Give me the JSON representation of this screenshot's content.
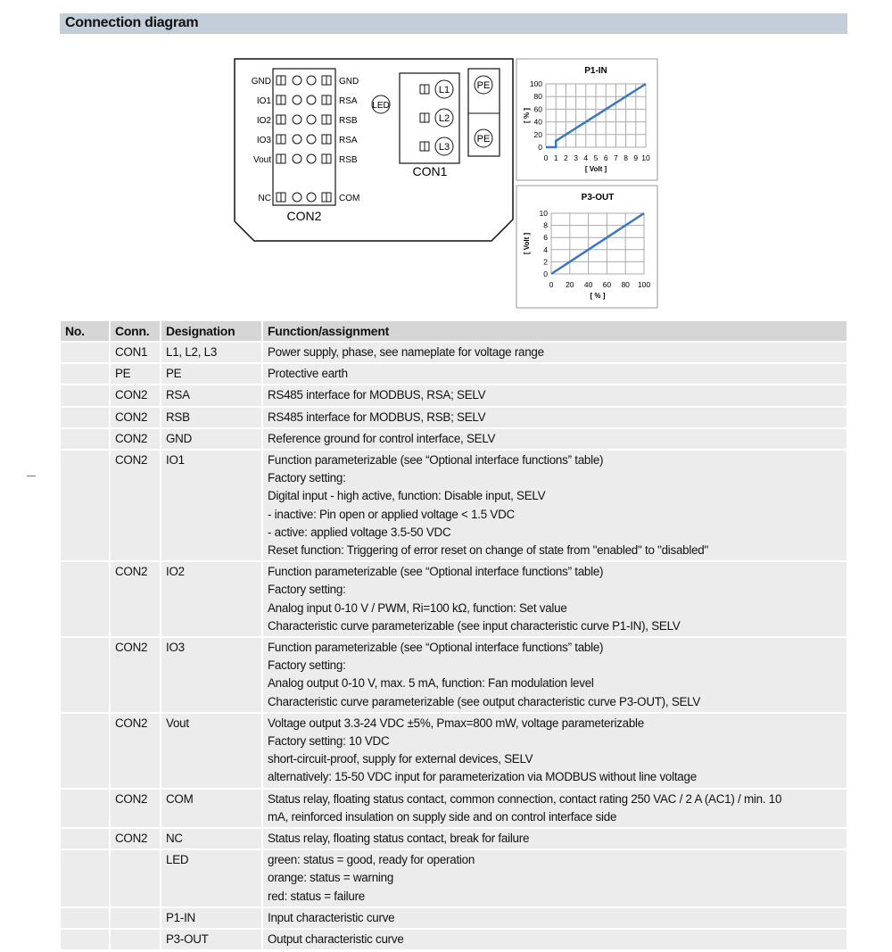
{
  "section_title": "Connection diagram",
  "diagram": {
    "con2_left_labels": [
      "GND",
      "IO1",
      "IO2",
      "IO3",
      "Vout",
      "NC"
    ],
    "con2_right_labels": [
      "GND",
      "RSA",
      "RSB",
      "RSA",
      "RSB",
      "COM"
    ],
    "con2_label": "CON2",
    "con1_label": "CON1",
    "con1_terminals": [
      "L1",
      "L2",
      "L3"
    ],
    "pe_terminals": [
      "PE",
      "PE"
    ],
    "led_label": "LED"
  },
  "chart_data": [
    {
      "type": "line",
      "title": "P1-IN",
      "xlabel": "[ Volt ]",
      "ylabel": "[ % ]",
      "xlim": [
        0,
        10
      ],
      "ylim": [
        0,
        100
      ],
      "xticks": [
        0,
        1,
        2,
        3,
        4,
        5,
        6,
        7,
        8,
        9,
        10
      ],
      "yticks": [
        0,
        20,
        40,
        60,
        80,
        100
      ],
      "grid": true,
      "line_color": "#3a76c4",
      "x": [
        0,
        1,
        1,
        10
      ],
      "y": [
        0,
        0,
        10,
        100
      ]
    },
    {
      "type": "line",
      "title": "P3-OUT",
      "xlabel": "[ % ]",
      "ylabel": "[ Volt ]",
      "xlim": [
        0,
        100
      ],
      "ylim": [
        0,
        10
      ],
      "xticks": [
        0,
        20,
        40,
        60,
        80,
        100
      ],
      "yticks": [
        0,
        2,
        4,
        6,
        8,
        10
      ],
      "grid": true,
      "line_color": "#3a76c4",
      "x": [
        0,
        100
      ],
      "y": [
        0,
        10
      ]
    }
  ],
  "table": {
    "headers": [
      "No.",
      "Conn.",
      "Designation",
      "Function/assignment"
    ],
    "rows": [
      {
        "no": "",
        "conn": "CON1",
        "designation": "L1, L2, L3",
        "function": [
          "Power supply, phase, see nameplate for voltage range"
        ]
      },
      {
        "no": "",
        "conn": "PE",
        "designation": "PE",
        "function": [
          "Protective earth"
        ]
      },
      {
        "no": "",
        "conn": "CON2",
        "designation": "RSA",
        "function": [
          "RS485 interface for MODBUS, RSA; SELV"
        ]
      },
      {
        "no": "",
        "conn": "CON2",
        "designation": "RSB",
        "function": [
          "RS485 interface for MODBUS, RSB; SELV"
        ]
      },
      {
        "no": "",
        "conn": "CON2",
        "designation": "GND",
        "function": [
          "Reference ground for control interface, SELV"
        ]
      },
      {
        "no": "",
        "conn": "CON2",
        "designation": "IO1",
        "function": [
          "Function parameterizable (see “Optional interface functions” table)",
          "Factory setting:",
          "Digital input - high active, function: Disable input, SELV",
          "- inactive: Pin open or applied voltage < 1.5 VDC",
          "- active: applied voltage 3.5-50 VDC",
          "Reset function: Triggering of error reset on change of state from \"enabled\" to \"disabled\""
        ]
      },
      {
        "no": "",
        "conn": "CON2",
        "designation": "IO2",
        "function": [
          "Function parameterizable (see “Optional interface functions” table)",
          "Factory setting:",
          "Analog input 0-10 V / PWM, Ri=100 kΩ, function: Set value",
          "Characteristic curve parameterizable (see input characteristic curve P1-IN), SELV"
        ]
      },
      {
        "no": "",
        "conn": "CON2",
        "designation": "IO3",
        "function": [
          "Function parameterizable (see “Optional interface functions” table)",
          "Factory setting:",
          "Analog output 0-10 V, max. 5 mA, function: Fan modulation level",
          "Characteristic curve parameterizable (see output characteristic curve P3-OUT), SELV"
        ]
      },
      {
        "no": "",
        "conn": "CON2",
        "designation": "Vout",
        "function": [
          "Voltage output 3.3-24 VDC ±5%, Pmax=800 mW, voltage parameterizable",
          "Factory setting: 10 VDC",
          "short-circuit-proof, supply for external devices, SELV",
          "alternatively: 15-50 VDC input for parameterization via MODBUS without line voltage"
        ]
      },
      {
        "no": "",
        "conn": "CON2",
        "designation": "COM",
        "function": [
          "Status relay, floating status contact, common connection, contact rating 250 VAC / 2 A (AC1) / min. 10",
          "mA, reinforced insulation on supply side and on control interface side"
        ]
      },
      {
        "no": "",
        "conn": "CON2",
        "designation": "NC",
        "function": [
          "Status relay, floating status contact, break for failure"
        ]
      },
      {
        "no": "",
        "conn": "",
        "designation": "LED",
        "function": [
          "green: status = good, ready for operation",
          "orange: status = warning",
          "red: status = failure"
        ]
      },
      {
        "no": "",
        "conn": "",
        "designation": "P1-IN",
        "function": [
          "Input characteristic curve"
        ]
      },
      {
        "no": "",
        "conn": "",
        "designation": "P3-OUT",
        "function": [
          "Output characteristic curve"
        ]
      }
    ]
  }
}
